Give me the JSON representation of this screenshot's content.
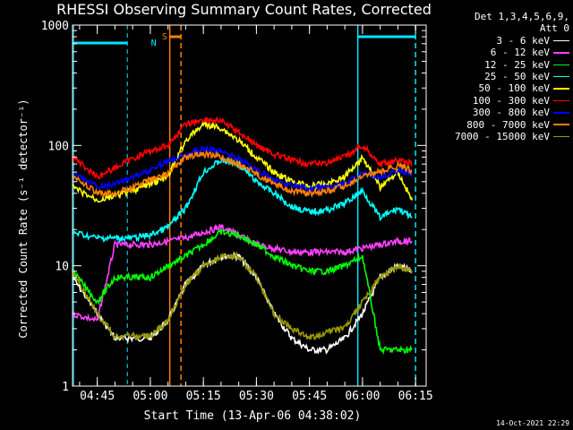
{
  "chart_data": {
    "type": "line",
    "title": "RHESSI Observing Summary Count Rates, Corrected",
    "xlabel": "Start Time (13-Apr-06 04:38:02)",
    "ylabel": "Corrected Count Rate (s⁻¹ detector⁻¹)",
    "x_start": "04:38:02",
    "x_range": [
      "04:38",
      "06:18"
    ],
    "x_ticks": [
      "04:45",
      "05:00",
      "05:15",
      "05:30",
      "05:45",
      "06:00",
      "06:15"
    ],
    "y_scale": "log",
    "ylim": [
      1,
      1000
    ],
    "y_ticks": [
      "1",
      "10",
      "100",
      "1000"
    ],
    "grid": false,
    "legend_position": "right",
    "legend_header": [
      "Det 1,3,4,5,6,9,",
      "Att 0"
    ],
    "markers": [
      {
        "label": "N",
        "color": "#00e5ff",
        "start": "04:38:02",
        "end": "04:53:30",
        "style": "dashed-end"
      },
      {
        "label": "S",
        "color": "#ff7f00",
        "start": "05:05:30",
        "end": "05:08:40",
        "style": "solid-dashed"
      },
      {
        "label": "",
        "color": "#00e5ff",
        "start": "05:58:40",
        "end": "06:15:00",
        "style": "solid-dashed"
      }
    ],
    "x": [
      "04:38",
      "04:45",
      "04:50",
      "04:55",
      "05:00",
      "05:05",
      "05:10",
      "05:15",
      "05:20",
      "05:25",
      "05:30",
      "05:35",
      "05:40",
      "05:45",
      "05:50",
      "05:55",
      "06:00",
      "06:05",
      "06:10",
      "06:14"
    ],
    "series": [
      {
        "name": "3 - 6 keV",
        "color": "#ffffff",
        "values": [
          8,
          4,
          2.5,
          2.5,
          2.5,
          3.5,
          7,
          10,
          12,
          12,
          8,
          4,
          2.5,
          2,
          2,
          2.5,
          4,
          8,
          10,
          9
        ]
      },
      {
        "name": "6 - 12 keV",
        "color": "#ff40ff",
        "values": [
          4,
          3.5,
          15,
          15,
          15,
          16,
          17,
          19,
          21,
          18,
          15,
          14,
          13,
          13,
          13,
          13,
          14,
          15,
          16,
          16
        ]
      },
      {
        "name": "12 - 25 keV",
        "color": "#00ff00",
        "values": [
          9,
          5,
          8,
          8,
          8,
          10,
          12,
          15,
          19,
          18,
          15,
          12,
          10,
          9,
          9,
          10,
          12,
          2,
          2,
          2
        ]
      },
      {
        "name": "25 - 50 keV",
        "color": "#00ffff",
        "values": [
          19,
          17,
          17,
          17,
          18,
          21,
          30,
          60,
          75,
          70,
          50,
          40,
          31,
          28,
          29,
          33,
          42,
          25,
          30,
          25
        ]
      },
      {
        "name": "50 - 100 keV",
        "color": "#ffff00",
        "values": [
          45,
          35,
          38,
          42,
          48,
          55,
          110,
          150,
          140,
          110,
          80,
          60,
          50,
          46,
          48,
          55,
          80,
          45,
          60,
          35
        ]
      },
      {
        "name": "100 - 300 keV",
        "color": "#ff0000",
        "values": [
          80,
          55,
          65,
          78,
          90,
          100,
          150,
          165,
          160,
          130,
          100,
          85,
          75,
          70,
          72,
          80,
          100,
          70,
          75,
          70
        ]
      },
      {
        "name": "300 - 800 keV",
        "color": "#0000ff",
        "values": [
          60,
          45,
          48,
          55,
          62,
          75,
          85,
          92,
          90,
          78,
          62,
          52,
          46,
          44,
          45,
          48,
          58,
          55,
          62,
          58
        ]
      },
      {
        "name": "800 - 7000 keV",
        "color": "#ff8000",
        "values": [
          55,
          40,
          40,
          45,
          52,
          58,
          80,
          85,
          80,
          70,
          58,
          48,
          42,
          40,
          42,
          46,
          55,
          60,
          68,
          62
        ]
      },
      {
        "name": "7000 - 15000 keV",
        "color": "#999900",
        "values": [
          9,
          4,
          2.6,
          2.6,
          2.6,
          3.5,
          7,
          10,
          12,
          12,
          8,
          4,
          3,
          2.5,
          2.8,
          3,
          5,
          8,
          10,
          9
        ]
      }
    ]
  },
  "footer": {
    "timestamp": "14-Oct-2021 22:29"
  }
}
